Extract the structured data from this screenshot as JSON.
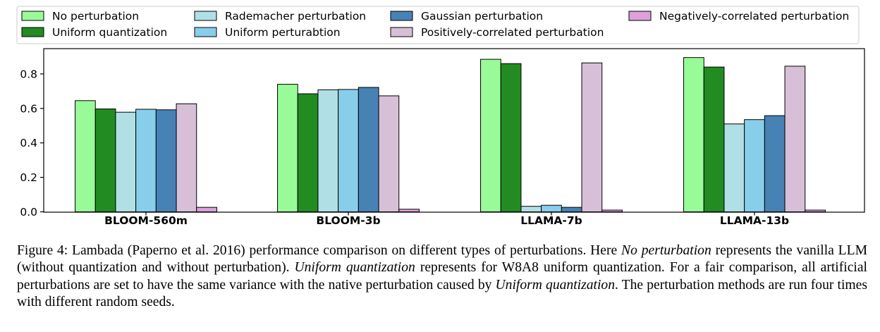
{
  "chart_data": {
    "type": "bar",
    "title": "",
    "xlabel": "",
    "ylabel": "",
    "ylim": [
      0,
      0.93
    ],
    "yticks": [
      0.0,
      0.2,
      0.4,
      0.6,
      0.8
    ],
    "ytick_labels": [
      "0.0",
      "0.2",
      "0.4",
      "0.6",
      "0.8"
    ],
    "grid": false,
    "legend_position": "top, above plot",
    "categories": [
      "BLOOM-560m",
      "BLOOM-3b",
      "LLAMA-7b",
      "LLAMA-13b"
    ],
    "series": [
      {
        "name": "No perturbation",
        "color": "#98fb98",
        "values": [
          0.645,
          0.74,
          0.885,
          0.895
        ]
      },
      {
        "name": "Uniform quantization",
        "color": "#228b22",
        "values": [
          0.597,
          0.685,
          0.86,
          0.84
        ]
      },
      {
        "name": "Rademacher perturbation",
        "color": "#b0e0e6",
        "values": [
          0.578,
          0.708,
          0.032,
          0.51
        ]
      },
      {
        "name": "Uniform perturabtion",
        "color": "#87ceeb",
        "values": [
          0.595,
          0.71,
          0.038,
          0.535
        ]
      },
      {
        "name": "Gaussian perturbation",
        "color": "#4682b4",
        "values": [
          0.592,
          0.722,
          0.026,
          0.558
        ]
      },
      {
        "name": "Positively-correlated perturbation",
        "color": "#d8bfd8",
        "values": [
          0.627,
          0.673,
          0.864,
          0.845
        ]
      },
      {
        "name": "Negatively-correlated perturbation",
        "color": "#dda0dd",
        "values": [
          0.026,
          0.015,
          0.01,
          0.01
        ]
      }
    ]
  },
  "caption": {
    "label": "Figure 4:",
    "s1": " Lambada (Paperno et al. 2016) performance comparison on different types of perturbations. Here ",
    "e1": "No perturbation",
    "s2": " represents the vanilla LLM (without quantization and without perturbation). ",
    "e2": "Uniform quantization",
    "s3": " represents for W8A8 uniform quantization. For a fair comparison, all artificial perturbations are set to have the same variance with the native perturbation caused by ",
    "e3": "Uniform quantization",
    "s4": ". The perturbation methods are run four times with different random seeds."
  }
}
